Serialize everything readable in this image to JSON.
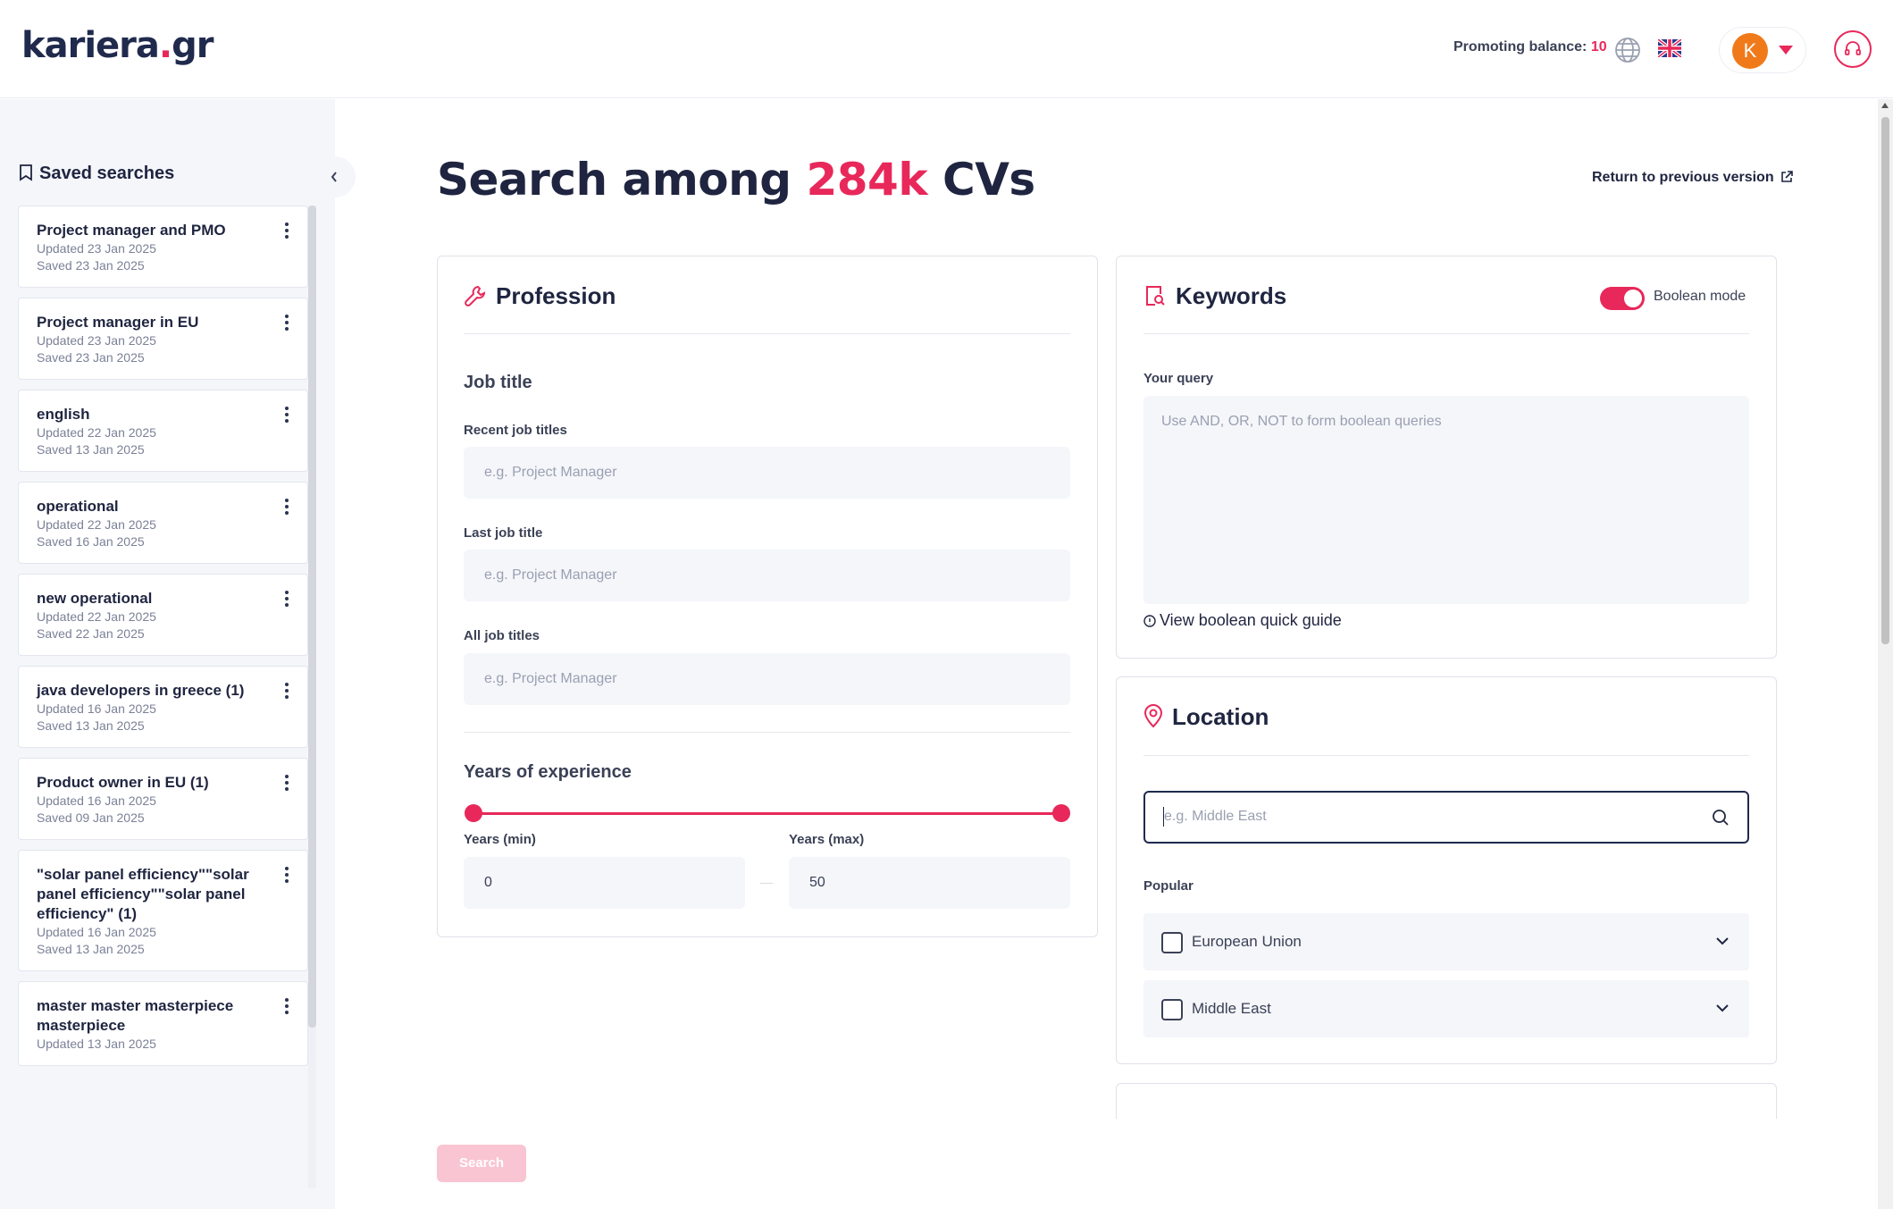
{
  "header": {
    "logo_main": "kariera",
    "logo_dot": ".",
    "logo_tld": "gr",
    "promo_label": "Promoting balance:",
    "promo_value": "10",
    "avatar_initial": "K"
  },
  "sidebar": {
    "title": "Saved searches",
    "items": [
      {
        "name": "Project manager and PMO",
        "updated": "Updated 23 Jan 2025",
        "saved": "Saved 23 Jan 2025"
      },
      {
        "name": "Project manager in EU",
        "updated": "Updated 23 Jan 2025",
        "saved": "Saved 23 Jan 2025"
      },
      {
        "name": "english",
        "updated": "Updated 22 Jan 2025",
        "saved": "Saved 13 Jan 2025"
      },
      {
        "name": "operational",
        "updated": "Updated 22 Jan 2025",
        "saved": "Saved 16 Jan 2025"
      },
      {
        "name": "new operational",
        "updated": "Updated 22 Jan 2025",
        "saved": "Saved 22 Jan 2025"
      },
      {
        "name": "java developers in greece (1)",
        "updated": "Updated 16 Jan 2025",
        "saved": "Saved 13 Jan 2025"
      },
      {
        "name": "Product owner in EU (1)",
        "updated": "Updated 16 Jan 2025",
        "saved": "Saved 09 Jan 2025"
      },
      {
        "name": "\"solar panel efficiency\"\"solar panel efficiency\"\"solar panel efficiency\" (1)",
        "updated": "Updated 16 Jan 2025",
        "saved": "Saved 13 Jan 2025"
      },
      {
        "name": "master master masterpiece masterpiece",
        "updated": "Updated 13 Jan 2025",
        "saved": ""
      }
    ]
  },
  "main": {
    "title_prefix": "Search among",
    "title_count": "284k",
    "title_suffix": "CVs",
    "return_link": "Return to previous version",
    "search_button": "Search"
  },
  "profession": {
    "title": "Profession",
    "job_title_section": "Job title",
    "recent_label": "Recent job titles",
    "recent_placeholder": "e.g. Project Manager",
    "last_label": "Last job title",
    "last_placeholder": "e.g. Project Manager",
    "all_label": "All job titles",
    "all_placeholder": "e.g. Project Manager",
    "experience_section": "Years of experience",
    "min_label": "Years (min)",
    "min_value": "0",
    "max_label": "Years (max)",
    "max_value": "50"
  },
  "keywords": {
    "title": "Keywords",
    "boolean_label": "Boolean mode",
    "boolean_on": true,
    "query_label": "Your query",
    "query_placeholder": "Use AND, OR, NOT to form boolean queries",
    "guide_link": "View boolean quick guide"
  },
  "location": {
    "title": "Location",
    "placeholder": "e.g. Middle East",
    "popular_label": "Popular",
    "options": [
      {
        "label": "European Union",
        "checked": false
      },
      {
        "label": "Middle East",
        "checked": false
      }
    ]
  },
  "colors": {
    "accent": "#e8285a",
    "text": "#1f2540",
    "field_bg": "#f4f6fa"
  }
}
